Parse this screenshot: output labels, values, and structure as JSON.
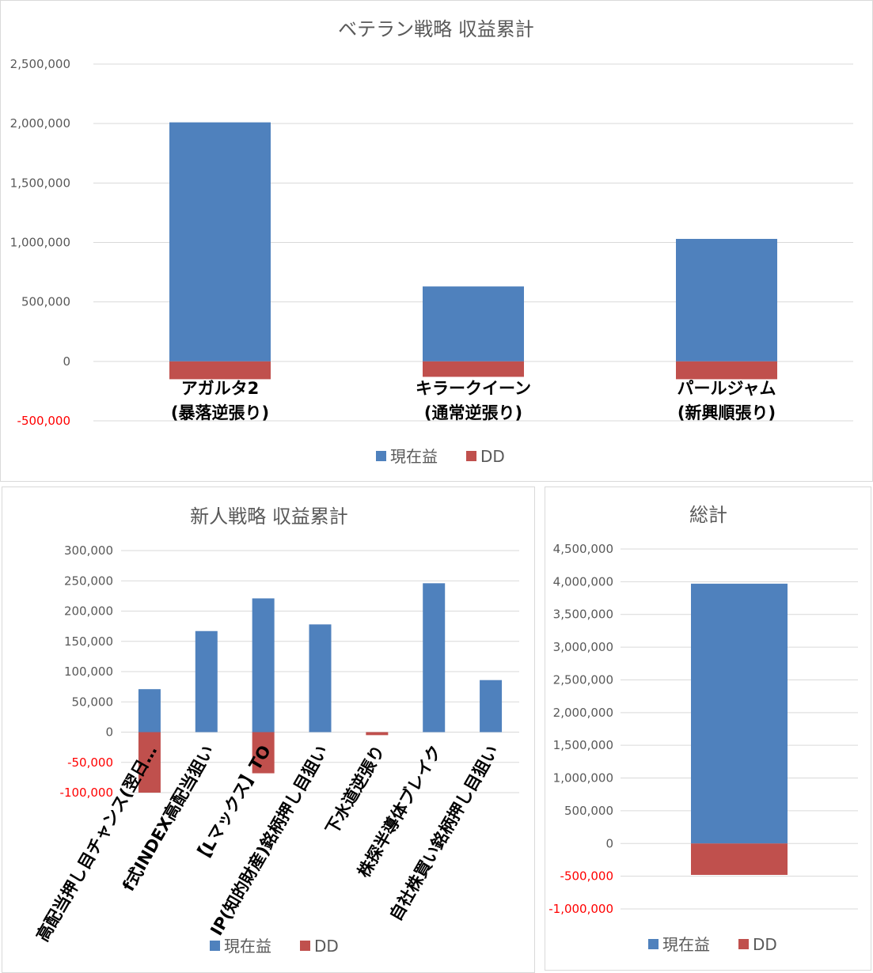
{
  "colors": {
    "profit": "#4f81bd",
    "dd": "#c0504d",
    "grid": "#d9d9d9",
    "negative_tick": "#ff0000"
  },
  "legend": {
    "profit": "現在益",
    "dd": "DD"
  },
  "chart_data": [
    {
      "id": "veteran",
      "type": "bar",
      "title": "ベテラン戦略 収益累計",
      "categories": [
        [
          "アガルタ2",
          "(暴落逆張り)"
        ],
        [
          "キラークイーン",
          "(通常逆張り)"
        ],
        [
          "パールジャム",
          "(新興順張り)"
        ]
      ],
      "series": [
        {
          "name": "現在益",
          "values": [
            2010000,
            630000,
            1030000
          ]
        },
        {
          "name": "DD",
          "values": [
            -150000,
            -130000,
            -150000
          ]
        }
      ],
      "ylim": [
        -500000,
        2500000
      ],
      "yticks": [
        2500000,
        2000000,
        1500000,
        1000000,
        500000,
        0,
        -500000
      ],
      "ytick_labels": [
        "2,500,000",
        "2,000,000",
        "1,500,000",
        "1,000,000",
        "500,000",
        "0",
        "-500,000"
      ],
      "grid": true,
      "legend_position": "bottom"
    },
    {
      "id": "rookie",
      "type": "bar",
      "title": "新人戦略 収益累計",
      "categories": [
        "高配当押し目チャンス(翌日…",
        "f式INDEX高配当狙い",
        "【Lマックス】TO",
        "IP(知的財産)銘柄押し目狙い",
        "下水道逆張り",
        "株探半導体ブレイク",
        "自社株買い銘柄押し目狙い"
      ],
      "series": [
        {
          "name": "現在益",
          "values": [
            71000,
            167000,
            221000,
            178000,
            0,
            246000,
            86000
          ]
        },
        {
          "name": "DD",
          "values": [
            -100000,
            0,
            -68000,
            0,
            -5000,
            0,
            0
          ]
        }
      ],
      "ylim": [
        -100000,
        300000
      ],
      "yticks": [
        300000,
        250000,
        200000,
        150000,
        100000,
        50000,
        0,
        -50000,
        -100000
      ],
      "ytick_labels": [
        "300,000",
        "250,000",
        "200,000",
        "150,000",
        "100,000",
        "50,000",
        "0",
        "-50,000",
        "-100,000"
      ],
      "grid": true,
      "legend_position": "bottom"
    },
    {
      "id": "total",
      "type": "bar",
      "title": "総計",
      "categories": [
        ""
      ],
      "series": [
        {
          "name": "現在益",
          "values": [
            3970000
          ]
        },
        {
          "name": "DD",
          "values": [
            -480000
          ]
        }
      ],
      "ylim": [
        -1000000,
        4500000
      ],
      "yticks": [
        4500000,
        4000000,
        3500000,
        3000000,
        2500000,
        2000000,
        1500000,
        1000000,
        500000,
        0,
        -500000,
        -1000000
      ],
      "ytick_labels": [
        "4,500,000",
        "4,000,000",
        "3,500,000",
        "3,000,000",
        "2,500,000",
        "2,000,000",
        "1,500,000",
        "1,000,000",
        "500,000",
        "0",
        "-500,000",
        "-1,000,000"
      ],
      "grid": true,
      "legend_position": "bottom"
    }
  ]
}
